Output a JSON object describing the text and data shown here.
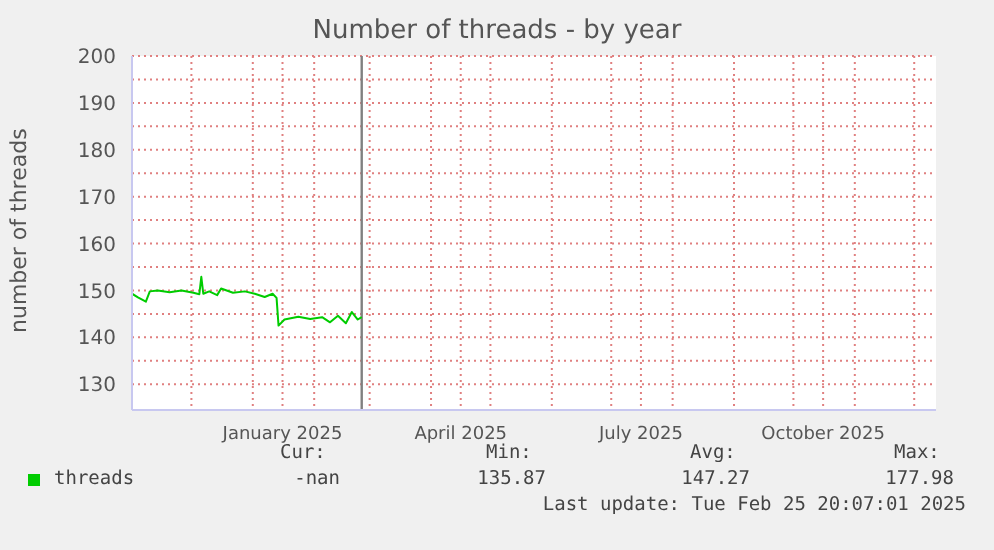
{
  "chart_data": {
    "type": "line",
    "title": "Number of threads - by year",
    "ylabel": "number of threads",
    "x": [
      "2024-11-01",
      "2024-11-04",
      "2024-11-08",
      "2024-11-10",
      "2024-11-14",
      "2024-11-20",
      "2024-11-26",
      "2024-12-02",
      "2024-12-05",
      "2024-12-06",
      "2024-12-07",
      "2024-12-10",
      "2024-12-14",
      "2024-12-16",
      "2024-12-22",
      "2024-12-28",
      "2025-01-02",
      "2025-01-07",
      "2025-01-11",
      "2025-01-13",
      "2025-01-14",
      "2025-01-17",
      "2025-01-24",
      "2025-01-30",
      "2025-02-05",
      "2025-02-09",
      "2025-02-13",
      "2025-02-17",
      "2025-02-20",
      "2025-02-23",
      "2025-02-25"
    ],
    "series": [
      {
        "name": "threads",
        "color": "#00cc00",
        "values": [
          149.3,
          148.5,
          147.6,
          149.8,
          150.0,
          149.6,
          150.0,
          149.5,
          149.2,
          152.9,
          149.3,
          149.8,
          149.0,
          150.4,
          149.5,
          149.8,
          149.3,
          148.6,
          149.3,
          148.4,
          142.5,
          143.8,
          144.4,
          143.9,
          144.3,
          143.2,
          144.6,
          143.0,
          145.4,
          143.8,
          144.3
        ]
      }
    ],
    "xlim": [
      "2024-11-01",
      "2025-12-12"
    ],
    "xticks": [
      {
        "value": "2024-12-01",
        "label": null
      },
      {
        "value": "2025-01-01",
        "label": null
      },
      {
        "value": "2025-01-16",
        "label": "January 2025"
      },
      {
        "value": "2025-02-01",
        "label": null
      },
      {
        "value": "2025-03-01",
        "label": null
      },
      {
        "value": "2025-04-01",
        "label": null
      },
      {
        "value": "2025-04-16",
        "label": "April 2025"
      },
      {
        "value": "2025-05-01",
        "label": null
      },
      {
        "value": "2025-06-01",
        "label": null
      },
      {
        "value": "2025-07-01",
        "label": null
      },
      {
        "value": "2025-07-16",
        "label": "July 2025"
      },
      {
        "value": "2025-08-01",
        "label": null
      },
      {
        "value": "2025-09-01",
        "label": null
      },
      {
        "value": "2025-10-01",
        "label": null
      },
      {
        "value": "2025-10-16",
        "label": "October 2025"
      },
      {
        "value": "2025-11-01",
        "label": null
      },
      {
        "value": "2025-12-01",
        "label": null
      }
    ],
    "ylim": [
      124.5,
      200
    ],
    "yticks": [
      130,
      {
        "value": 135,
        "label": null
      },
      140,
      {
        "value": 145,
        "label": null
      },
      150,
      {
        "value": 155,
        "label": null
      },
      160,
      {
        "value": 165,
        "label": null
      },
      170,
      {
        "value": 175,
        "label": null
      },
      180,
      {
        "value": 185,
        "label": null
      },
      190,
      {
        "value": 195,
        "label": null
      },
      200
    ],
    "ref_lines": [
      {
        "axis": "x",
        "value": "2025-02-25",
        "color": "#808080"
      }
    ],
    "grid": true,
    "legend": "bottom left",
    "marker": "none",
    "line_style": "solid",
    "annotations": [
      "Cur:",
      "Min:",
      "Avg:",
      "Max:",
      "-nan",
      "135.87",
      "147.27",
      "177.98",
      "Last update: Tue Feb 25 20:07:01 2025"
    ]
  }
}
